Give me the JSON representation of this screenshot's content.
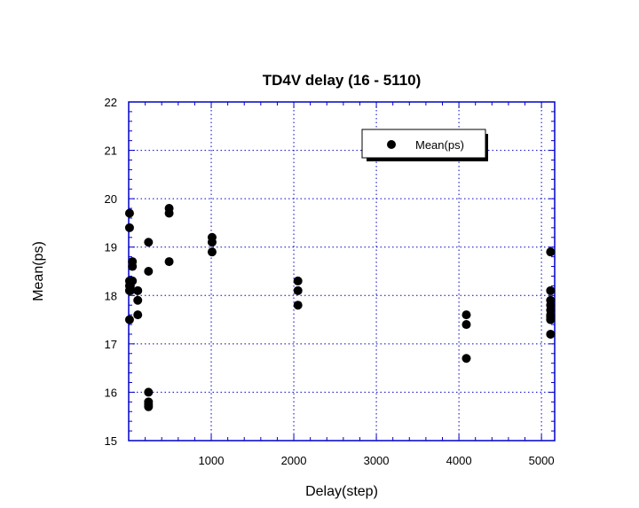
{
  "chart_data": {
    "type": "scatter",
    "title": "TD4V delay (16 - 5110)",
    "xlabel": "Delay(step)",
    "ylabel": "Mean(ps)",
    "xlim": [
      0,
      5160
    ],
    "ylim": [
      15,
      22
    ],
    "xticks": [
      1000,
      2000,
      3000,
      4000,
      5000
    ],
    "yticks": [
      15,
      16,
      17,
      18,
      19,
      20,
      21,
      22
    ],
    "grid": true,
    "legend_position": "top-right",
    "colors": {
      "axis": "#0000c8",
      "grid": "#0000c8",
      "marker": "#000000",
      "background": "#ffffff"
    },
    "series": [
      {
        "name": "Mean(ps)",
        "marker": "circle",
        "points": [
          [
            10,
            19.7
          ],
          [
            10,
            19.4
          ],
          [
            10,
            18.3
          ],
          [
            10,
            18.2
          ],
          [
            10,
            18.1
          ],
          [
            10,
            17.5
          ],
          [
            20,
            18.1
          ],
          [
            20,
            18.2
          ],
          [
            45,
            18.7
          ],
          [
            45,
            18.6
          ],
          [
            45,
            18.3
          ],
          [
            110,
            18.1
          ],
          [
            110,
            17.9
          ],
          [
            110,
            17.6
          ],
          [
            240,
            19.1
          ],
          [
            240,
            18.5
          ],
          [
            240,
            16.0
          ],
          [
            240,
            15.8
          ],
          [
            240,
            15.75
          ],
          [
            240,
            15.7
          ],
          [
            490,
            19.8
          ],
          [
            490,
            19.7
          ],
          [
            490,
            18.7
          ],
          [
            1010,
            19.2
          ],
          [
            1010,
            19.1
          ],
          [
            1010,
            18.9
          ],
          [
            2050,
            18.3
          ],
          [
            2050,
            18.1
          ],
          [
            2050,
            17.8
          ],
          [
            4090,
            17.6
          ],
          [
            4090,
            17.4
          ],
          [
            4090,
            16.7
          ],
          [
            5110,
            18.9
          ],
          [
            5110,
            18.1
          ],
          [
            5110,
            17.9
          ],
          [
            5110,
            17.8
          ],
          [
            5110,
            17.7
          ],
          [
            5110,
            17.6
          ],
          [
            5110,
            17.55
          ],
          [
            5110,
            17.5
          ],
          [
            5110,
            17.2
          ]
        ]
      }
    ]
  }
}
